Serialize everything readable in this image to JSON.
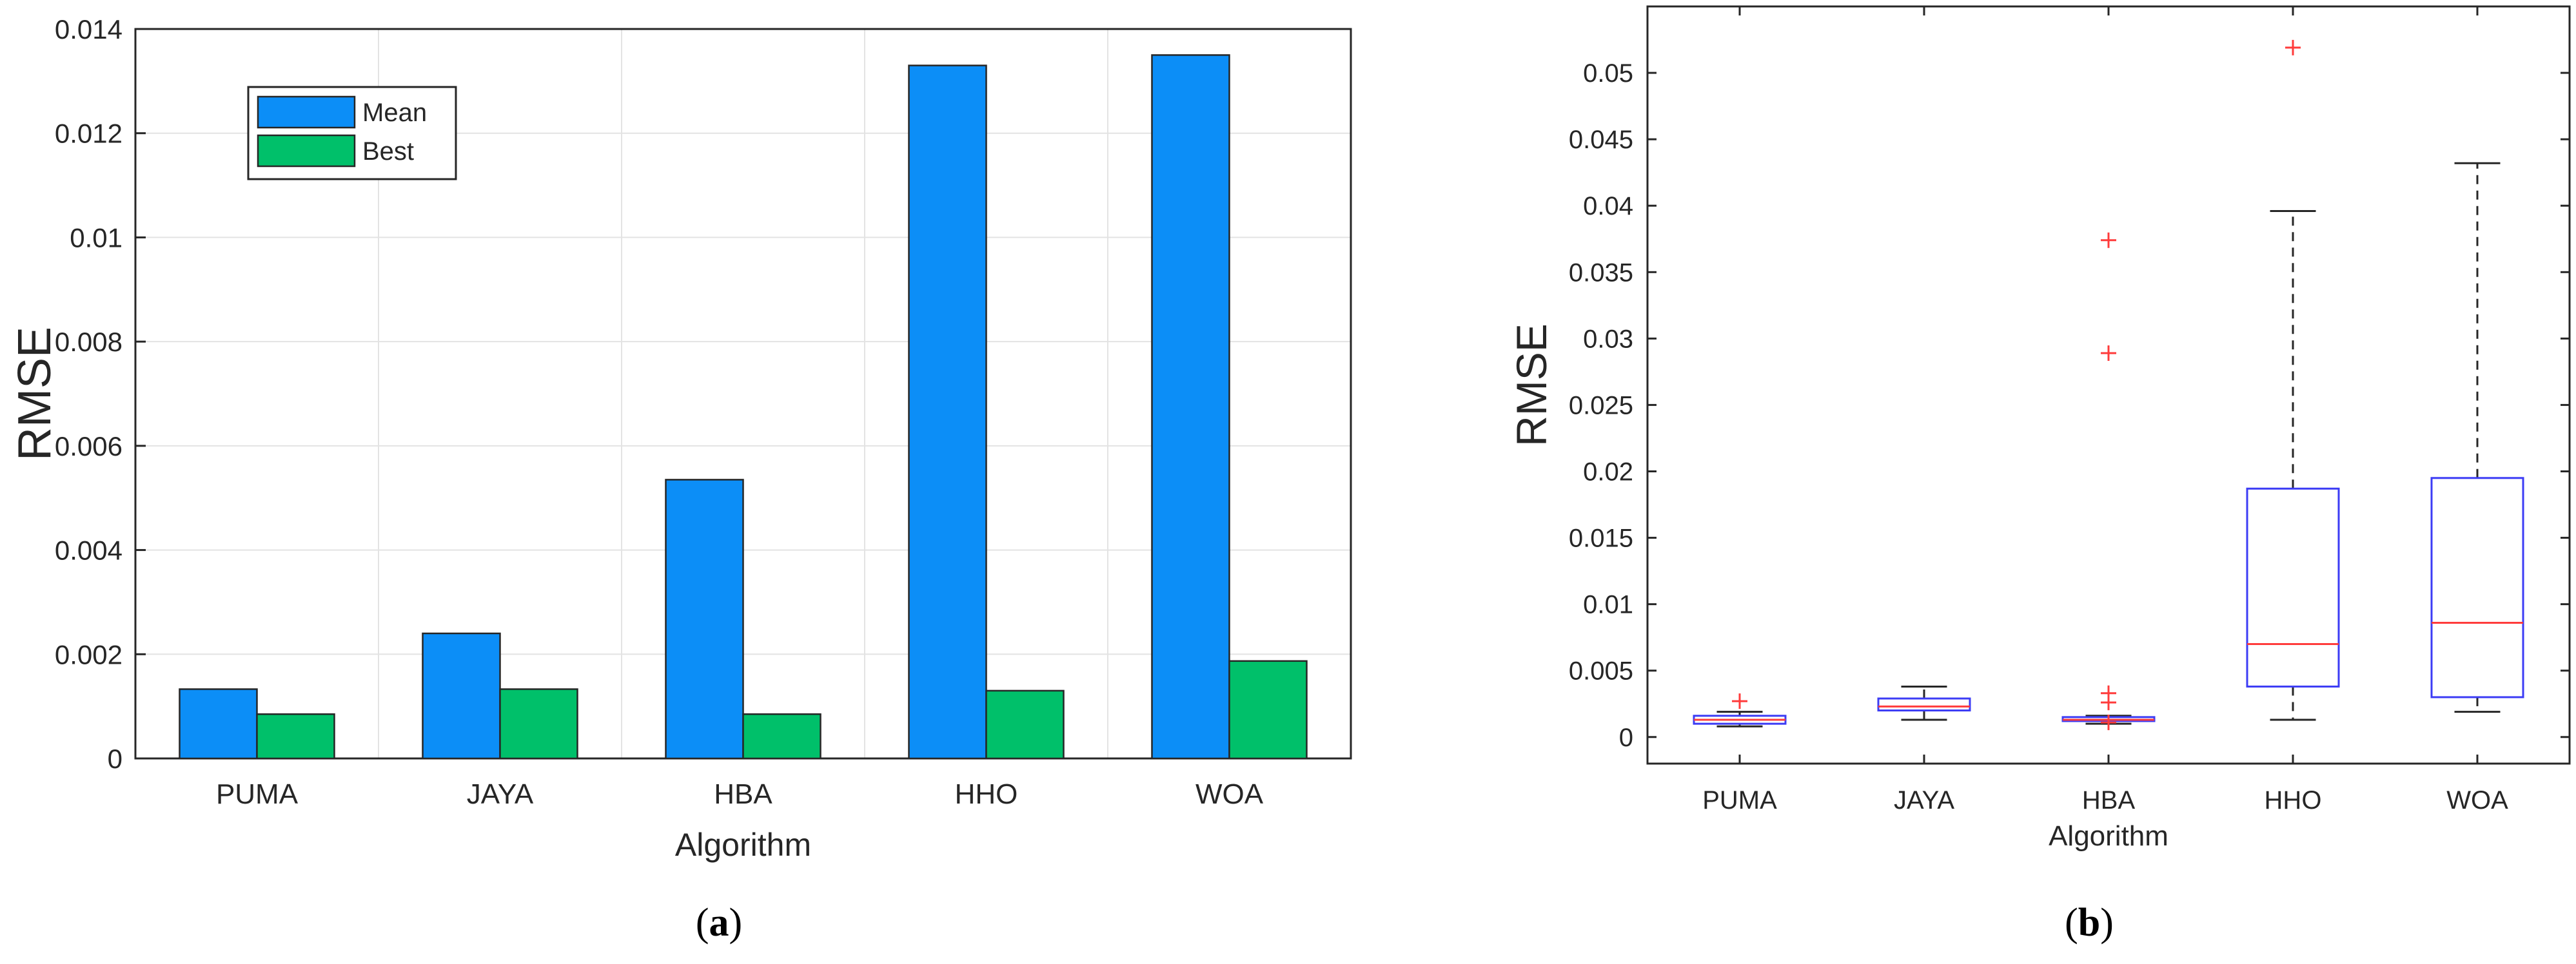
{
  "chart_data": [
    {
      "panel": "a",
      "type": "bar",
      "categories": [
        "PUMA",
        "JAYA",
        "HBA",
        "HHO",
        "WOA"
      ],
      "series": [
        {
          "name": "Mean",
          "color": "#0c8ef7",
          "values": [
            0.00133,
            0.0024,
            0.00535,
            0.0133,
            0.0135
          ]
        },
        {
          "name": "Best",
          "color": "#00c06a",
          "values": [
            0.00085,
            0.00133,
            0.00085,
            0.0013,
            0.00187
          ]
        }
      ],
      "xlabel": "Algorithm",
      "ylabel": "RMSE",
      "ylim": [
        0,
        0.014
      ],
      "yticks": [
        "0",
        "0.002",
        "0.004",
        "0.006",
        "0.008",
        "0.01",
        "0.012",
        "0.014"
      ],
      "grid": true,
      "legend": "top-left"
    },
    {
      "panel": "b",
      "type": "box",
      "categories": [
        "PUMA",
        "JAYA",
        "HBA",
        "HHO",
        "WOA"
      ],
      "boxes": [
        {
          "whisker_low": 0.0008,
          "q1": 0.001,
          "median": 0.0013,
          "q3": 0.0016,
          "whisker_high": 0.0019,
          "outliers": [
            0.0027
          ]
        },
        {
          "whisker_low": 0.0013,
          "q1": 0.002,
          "median": 0.0023,
          "q3": 0.0029,
          "whisker_high": 0.0038,
          "outliers": []
        },
        {
          "whisker_low": 0.001,
          "q1": 0.0012,
          "median": 0.0013,
          "q3": 0.0015,
          "whisker_high": 0.0016,
          "outliers": [
            0.0374,
            0.0289,
            0.0033,
            0.0026,
            0.0011
          ]
        },
        {
          "whisker_low": 0.0013,
          "q1": 0.0038,
          "median": 0.007,
          "q3": 0.0187,
          "whisker_high": 0.0396,
          "outliers": [
            0.0519
          ]
        },
        {
          "whisker_low": 0.0019,
          "q1": 0.003,
          "median": 0.0086,
          "q3": 0.0195,
          "whisker_high": 0.0432,
          "outliers": []
        }
      ],
      "box_color": "#3c3cf5",
      "median_color": "#ff3b3b",
      "outlier_color": "#ff3b3b",
      "xlabel": "Algorithm",
      "ylabel": "RMSE",
      "ylim": [
        -0.002,
        0.055
      ],
      "yticks": [
        0,
        0.005,
        0.01,
        0.015,
        0.02,
        0.025,
        0.03,
        0.035,
        0.04,
        0.045,
        0.05
      ],
      "ytick_labels": [
        "0",
        "0.005",
        "0.01",
        "0.015",
        "0.02",
        "0.025",
        "0.03",
        "0.035",
        "0.04",
        "0.045",
        "0.05"
      ],
      "grid": false
    }
  ],
  "captions": {
    "a": {
      "open": "(",
      "letter": "a",
      "close": ")"
    },
    "b": {
      "open": "(",
      "letter": "b",
      "close": ")"
    }
  }
}
